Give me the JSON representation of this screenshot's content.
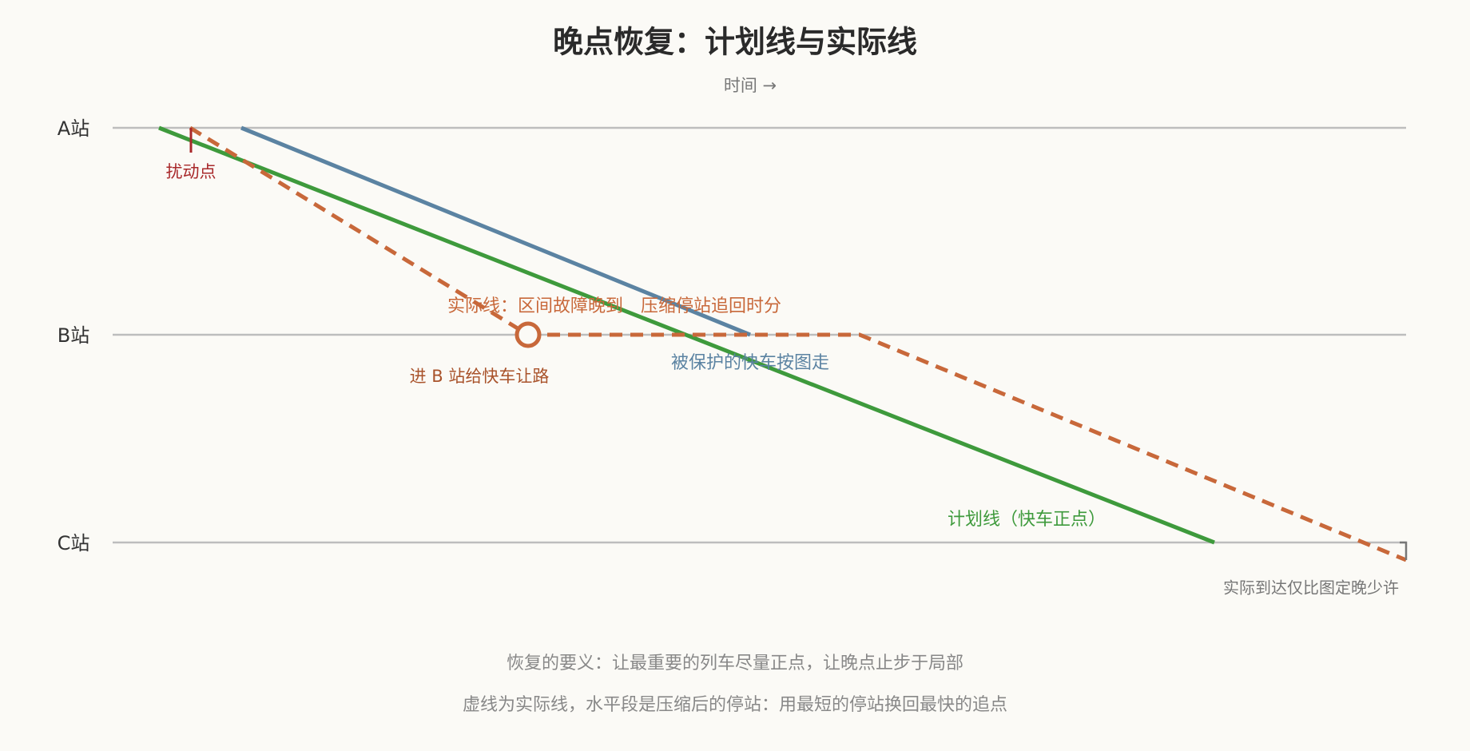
{
  "title": "晚点恢复：计划线与实际线",
  "time_axis_label": "时间 →",
  "stations": [
    "A站",
    "B站",
    "C站"
  ],
  "annotations": {
    "disturbance": "扰动点",
    "actual_line": "实际线：区间故障晚到　压缩停站追回时分",
    "yield": "进 B 站给快车让路",
    "protected": "被保护的快车按图走",
    "plan_line": "计划线（快车正点）",
    "arrival": "实际到达仅比图定晚少许"
  },
  "footer": [
    "恢复的要义：让最重要的列车尽量正点，让晚点止步于局部",
    "虚线为实际线，水平段是压缩后的停站：用最短的停站换回最快的追点"
  ]
}
